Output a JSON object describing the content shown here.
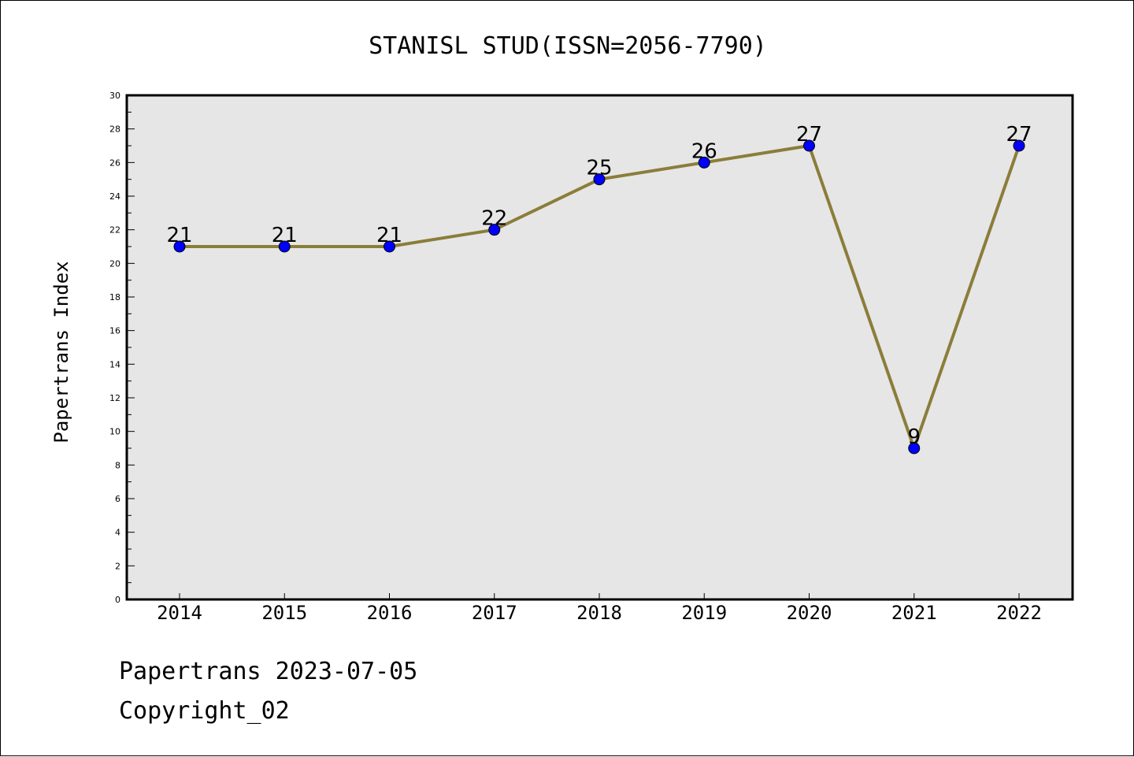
{
  "chart_data": {
    "type": "line",
    "title": "STANISL STUD(ISSN=2056-7790)",
    "xlabel": "",
    "ylabel": "Papertrans Index",
    "categories": [
      "2014",
      "2015",
      "2016",
      "2017",
      "2018",
      "2019",
      "2020",
      "2021",
      "2022"
    ],
    "series": [
      {
        "values": [
          21,
          21,
          21,
          22,
          25,
          26,
          27,
          9,
          27
        ]
      }
    ],
    "ylim": [
      0,
      30
    ],
    "yticks": [
      0,
      2,
      4,
      6,
      8,
      10,
      12,
      14,
      16,
      18,
      20,
      22,
      24,
      26,
      28,
      30
    ],
    "grid": false,
    "legend": "none",
    "colors": {
      "line": "#8b7d3a",
      "marker": "#0000ff",
      "plot_background": "#e6e6e6"
    }
  },
  "footer": {
    "line1": "Papertrans 2023-07-05",
    "line2": "Copyright_02"
  }
}
